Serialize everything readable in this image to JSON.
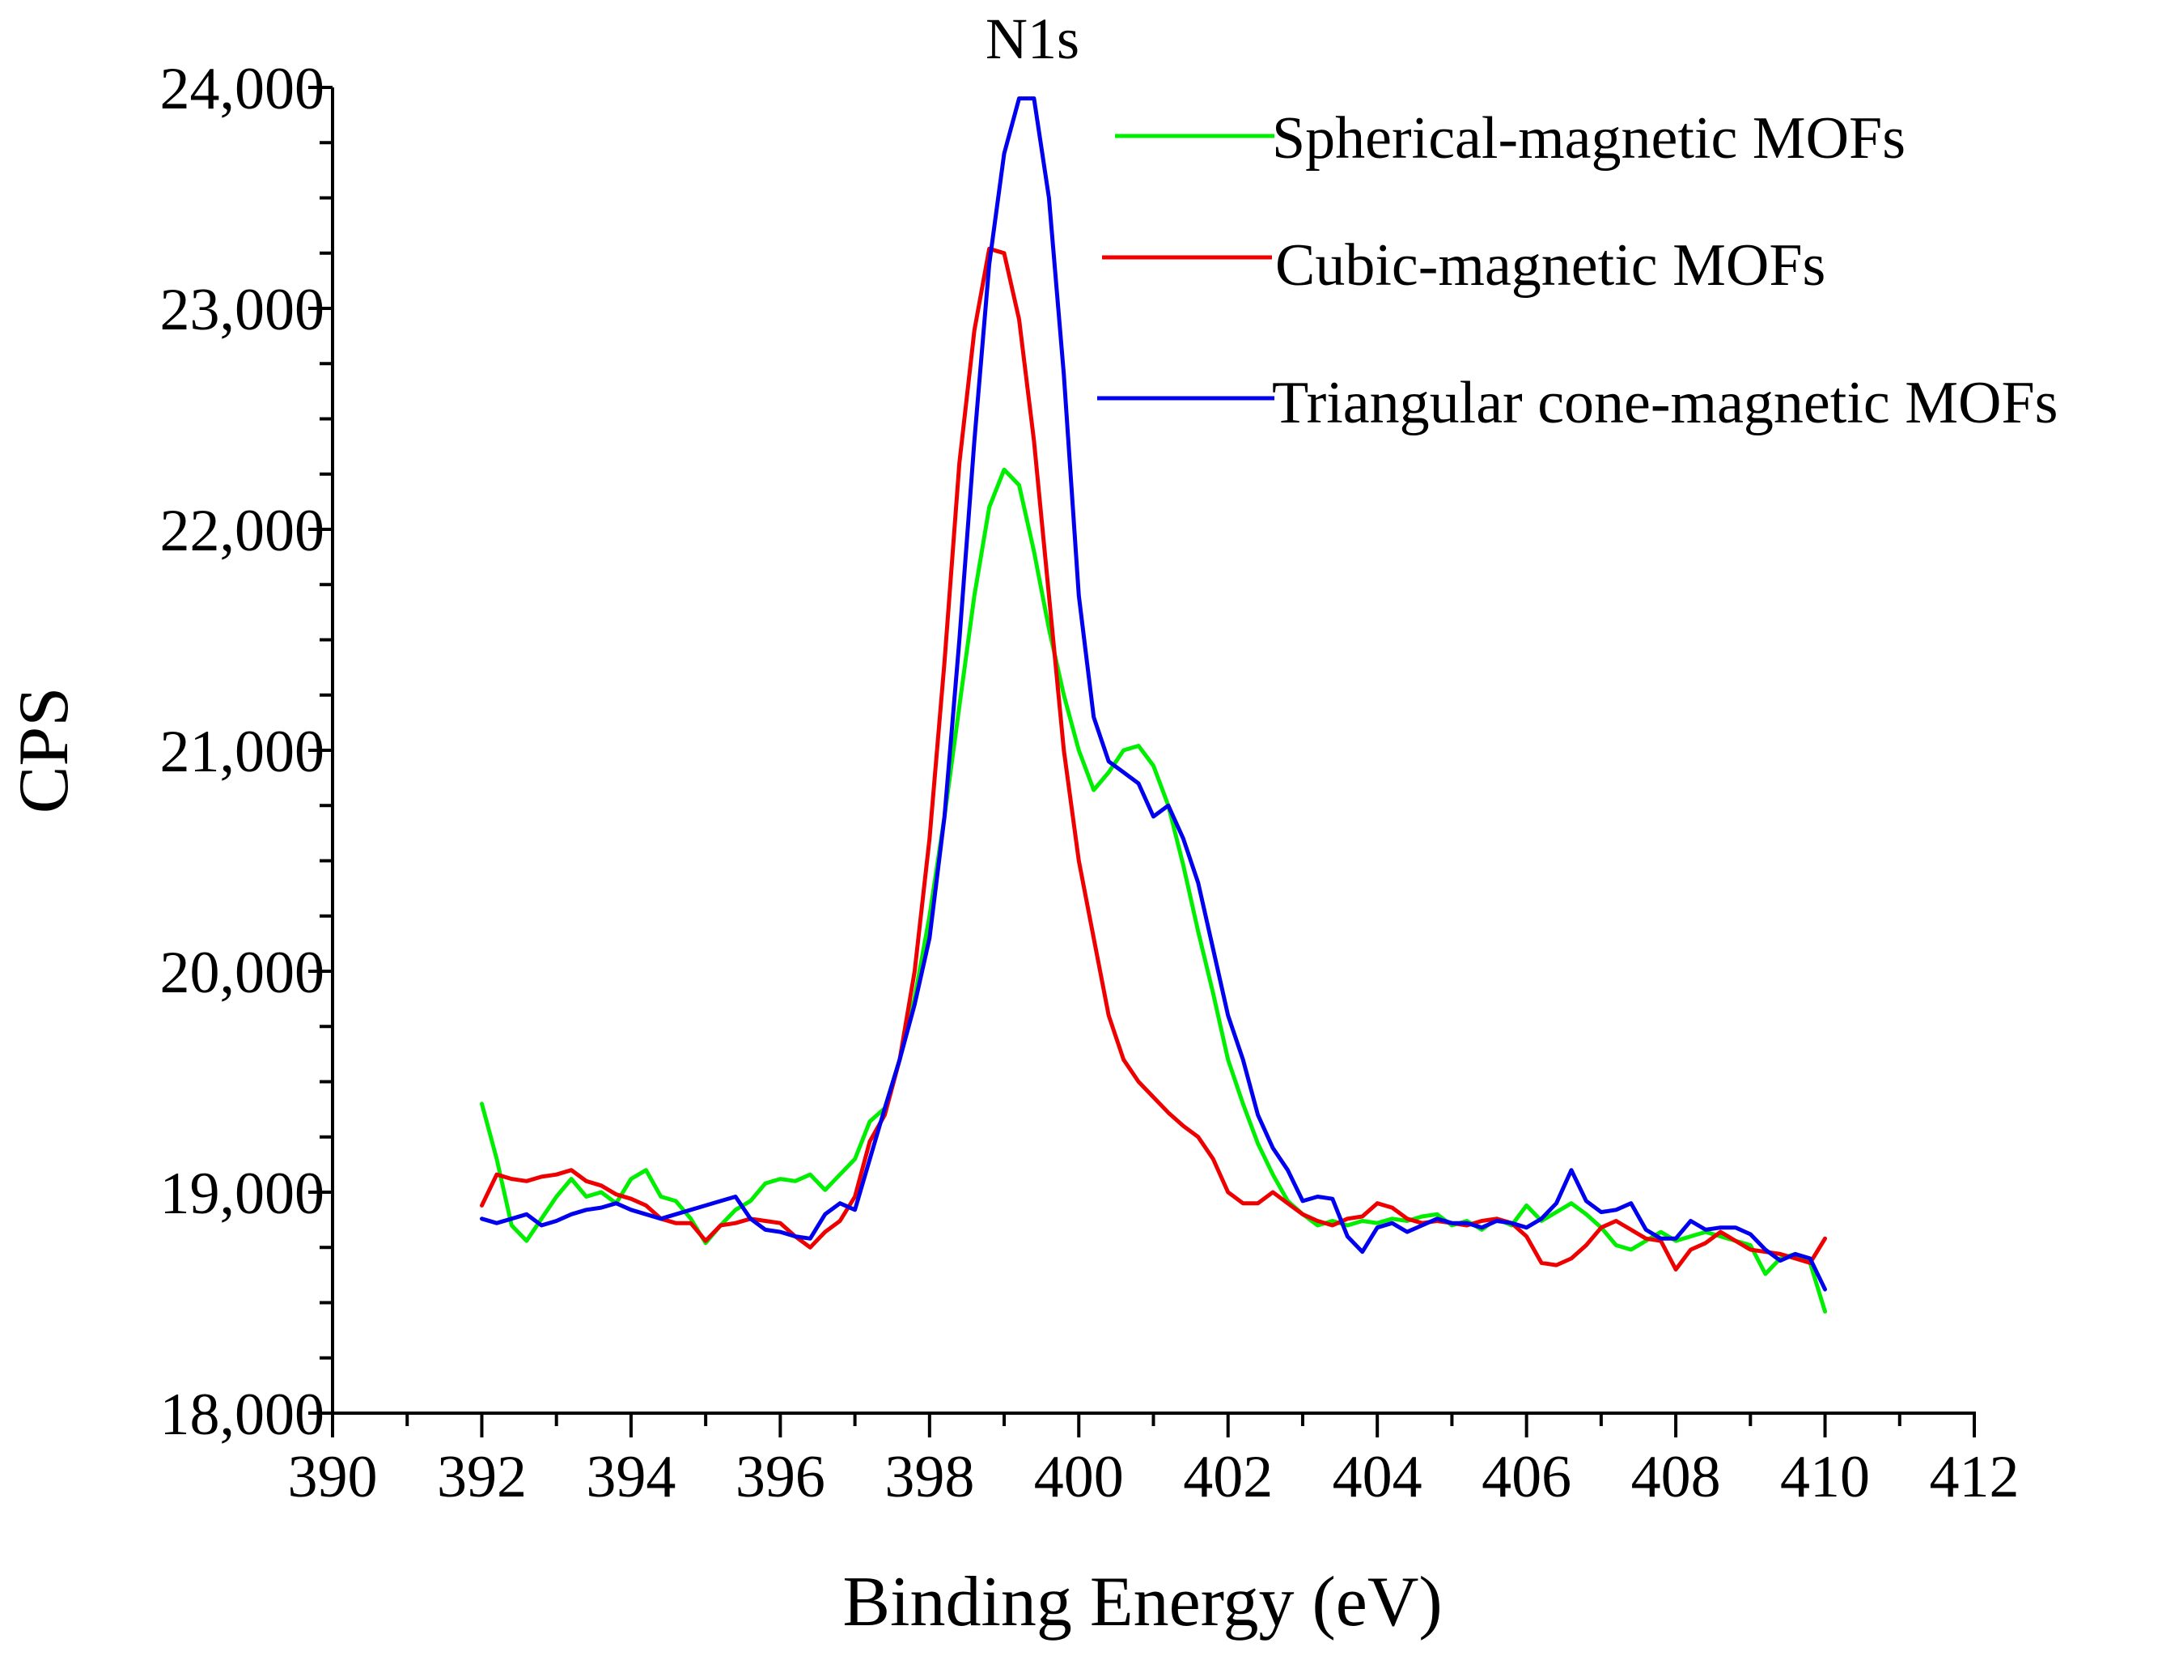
{
  "chart_data": {
    "type": "line",
    "title": "N1s",
    "xlabel": "Binding Energy (eV)",
    "ylabel": "CPS",
    "xlim": [
      390,
      412
    ],
    "ylim": [
      18000,
      24000
    ],
    "x_ticks": [
      390,
      392,
      394,
      396,
      398,
      400,
      402,
      404,
      406,
      408,
      410,
      412
    ],
    "x_tick_labels": [
      "390",
      "392",
      "394",
      "396",
      "398",
      "400",
      "402",
      "404",
      "406",
      "408",
      "410",
      "412"
    ],
    "y_ticks": [
      18000,
      19000,
      20000,
      21000,
      22000,
      23000,
      24000
    ],
    "y_tick_labels": [
      "18,000",
      "19,000",
      "20,000",
      "21,000",
      "22,000",
      "23,000",
      "24,000"
    ],
    "grid": false,
    "legend_position": "top-right",
    "series": [
      {
        "name": "Spherical-magnetic MOFs",
        "color": "#00ee00",
        "x": [
          392.0,
          392.2,
          392.4,
          392.6,
          392.8,
          393.0,
          393.2,
          393.4,
          393.6,
          393.8,
          394.0,
          394.2,
          394.4,
          394.6,
          394.8,
          395.0,
          395.2,
          395.4,
          395.6,
          395.8,
          396.0,
          396.2,
          396.4,
          396.6,
          396.8,
          397.0,
          397.2,
          397.4,
          397.6,
          397.8,
          398.0,
          398.2,
          398.4,
          398.6,
          398.8,
          399.0,
          399.2,
          399.4,
          399.6,
          399.8,
          400.0,
          400.2,
          400.4,
          400.6,
          400.8,
          401.0,
          401.2,
          401.4,
          401.6,
          401.8,
          402.0,
          402.2,
          402.4,
          402.6,
          402.8,
          403.0,
          403.2,
          403.4,
          403.6,
          403.8,
          404.0,
          404.2,
          404.4,
          404.6,
          404.8,
          405.0,
          405.2,
          405.4,
          405.6,
          405.8,
          406.0,
          406.2,
          406.4,
          406.6,
          406.8,
          407.0,
          407.2,
          407.4,
          407.6,
          407.8,
          408.0,
          408.2,
          408.4,
          408.6,
          408.8,
          409.0,
          409.2,
          409.4,
          409.6,
          409.8,
          410.0
        ],
        "y": [
          19400,
          19150,
          18850,
          18780,
          18880,
          18980,
          19060,
          18980,
          19000,
          18950,
          19060,
          19100,
          18980,
          18960,
          18880,
          18770,
          18850,
          18920,
          18960,
          19040,
          19060,
          19050,
          19080,
          19010,
          19080,
          19150,
          19320,
          19380,
          19600,
          19880,
          20250,
          20700,
          21200,
          21700,
          22100,
          22270,
          22200,
          21900,
          21550,
          21250,
          21000,
          20820,
          20900,
          21000,
          21020,
          20930,
          20750,
          20480,
          20180,
          19900,
          19600,
          19400,
          19220,
          19080,
          18960,
          18900,
          18850,
          18870,
          18850,
          18870,
          18860,
          18880,
          18870,
          18890,
          18900,
          18850,
          18870,
          18830,
          18880,
          18850,
          18940,
          18870,
          18910,
          18950,
          18900,
          18840,
          18760,
          18740,
          18780,
          18820,
          18780,
          18800,
          18820,
          18800,
          18780,
          18760,
          18630,
          18700,
          18720,
          18680,
          18460
        ]
      },
      {
        "name": "Cubic-magnetic MOFs",
        "color": "#ee0000",
        "x": [
          392.0,
          392.2,
          392.4,
          392.6,
          392.8,
          393.0,
          393.2,
          393.4,
          393.6,
          393.8,
          394.0,
          394.2,
          394.4,
          394.6,
          394.8,
          395.0,
          395.2,
          395.4,
          395.6,
          395.8,
          396.0,
          396.2,
          396.4,
          396.6,
          396.8,
          397.0,
          397.2,
          397.4,
          397.6,
          397.8,
          398.0,
          398.2,
          398.4,
          398.6,
          398.8,
          399.0,
          399.2,
          399.4,
          399.6,
          399.8,
          400.0,
          400.2,
          400.4,
          400.6,
          400.8,
          401.0,
          401.2,
          401.4,
          401.6,
          401.8,
          402.0,
          402.2,
          402.4,
          402.6,
          402.8,
          403.0,
          403.2,
          403.4,
          403.6,
          403.8,
          404.0,
          404.2,
          404.4,
          404.6,
          404.8,
          405.0,
          405.2,
          405.4,
          405.6,
          405.8,
          406.0,
          406.2,
          406.4,
          406.6,
          406.8,
          407.0,
          407.2,
          407.4,
          407.6,
          407.8,
          408.0,
          408.2,
          408.4,
          408.6,
          408.8,
          409.0,
          409.2,
          409.4,
          409.6,
          409.8,
          410.0
        ],
        "y": [
          18940,
          19080,
          19060,
          19050,
          19070,
          19080,
          19100,
          19050,
          19030,
          18990,
          18970,
          18940,
          18880,
          18860,
          18860,
          18780,
          18850,
          18860,
          18880,
          18870,
          18860,
          18800,
          18750,
          18820,
          18870,
          18980,
          19230,
          19350,
          19600,
          20000,
          20600,
          21400,
          22300,
          22900,
          23270,
          23250,
          22950,
          22400,
          21700,
          21000,
          20500,
          20150,
          19800,
          19600,
          19500,
          19430,
          19360,
          19300,
          19250,
          19150,
          19000,
          18950,
          18950,
          19000,
          18950,
          18900,
          18870,
          18850,
          18880,
          18890,
          18950,
          18930,
          18880,
          18860,
          18870,
          18860,
          18850,
          18870,
          18880,
          18860,
          18800,
          18680,
          18670,
          18700,
          18760,
          18840,
          18870,
          18830,
          18790,
          18780,
          18650,
          18740,
          18770,
          18820,
          18780,
          18740,
          18730,
          18720,
          18700,
          18680,
          18790
        ]
      },
      {
        "name": "Triangular cone-magnetic MOFs",
        "color": "#0000ee",
        "x": [
          392.0,
          392.2,
          392.4,
          392.6,
          392.8,
          393.0,
          393.2,
          393.4,
          393.6,
          393.8,
          394.0,
          394.2,
          394.4,
          394.6,
          394.8,
          395.0,
          395.2,
          395.4,
          395.6,
          395.8,
          396.0,
          396.2,
          396.4,
          396.6,
          396.8,
          397.0,
          397.2,
          397.4,
          397.6,
          397.8,
          398.0,
          398.2,
          398.4,
          398.6,
          398.8,
          399.0,
          399.2,
          399.4,
          399.6,
          399.8,
          400.0,
          400.2,
          400.4,
          400.6,
          400.8,
          401.0,
          401.2,
          401.4,
          401.6,
          401.8,
          402.0,
          402.2,
          402.4,
          402.6,
          402.8,
          403.0,
          403.2,
          403.4,
          403.6,
          403.8,
          404.0,
          404.2,
          404.4,
          404.6,
          404.8,
          405.0,
          405.2,
          405.4,
          405.6,
          405.8,
          406.0,
          406.2,
          406.4,
          406.6,
          406.8,
          407.0,
          407.2,
          407.4,
          407.6,
          407.8,
          408.0,
          408.2,
          408.4,
          408.6,
          408.8,
          409.0,
          409.2,
          409.4,
          409.6,
          409.8,
          410.0
        ],
        "y": [
          18880,
          18860,
          18880,
          18900,
          18850,
          18870,
          18900,
          18920,
          18930,
          18950,
          18920,
          18900,
          18880,
          18900,
          18920,
          18940,
          18960,
          18980,
          18880,
          18830,
          18820,
          18800,
          18790,
          18900,
          18950,
          18920,
          19150,
          19380,
          19600,
          19850,
          20150,
          20700,
          21500,
          22400,
          23200,
          23700,
          23950,
          23950,
          23500,
          22700,
          21700,
          21150,
          20950,
          20900,
          20850,
          20700,
          20750,
          20600,
          20400,
          20100,
          19800,
          19600,
          19350,
          19200,
          19100,
          18960,
          18980,
          18970,
          18800,
          18730,
          18840,
          18860,
          18820,
          18850,
          18880,
          18860,
          18860,
          18840,
          18870,
          18860,
          18840,
          18880,
          18950,
          19100,
          18960,
          18910,
          18920,
          18950,
          18830,
          18790,
          18790,
          18870,
          18830,
          18840,
          18840,
          18810,
          18740,
          18690,
          18720,
          18700,
          18560
        ]
      }
    ]
  }
}
